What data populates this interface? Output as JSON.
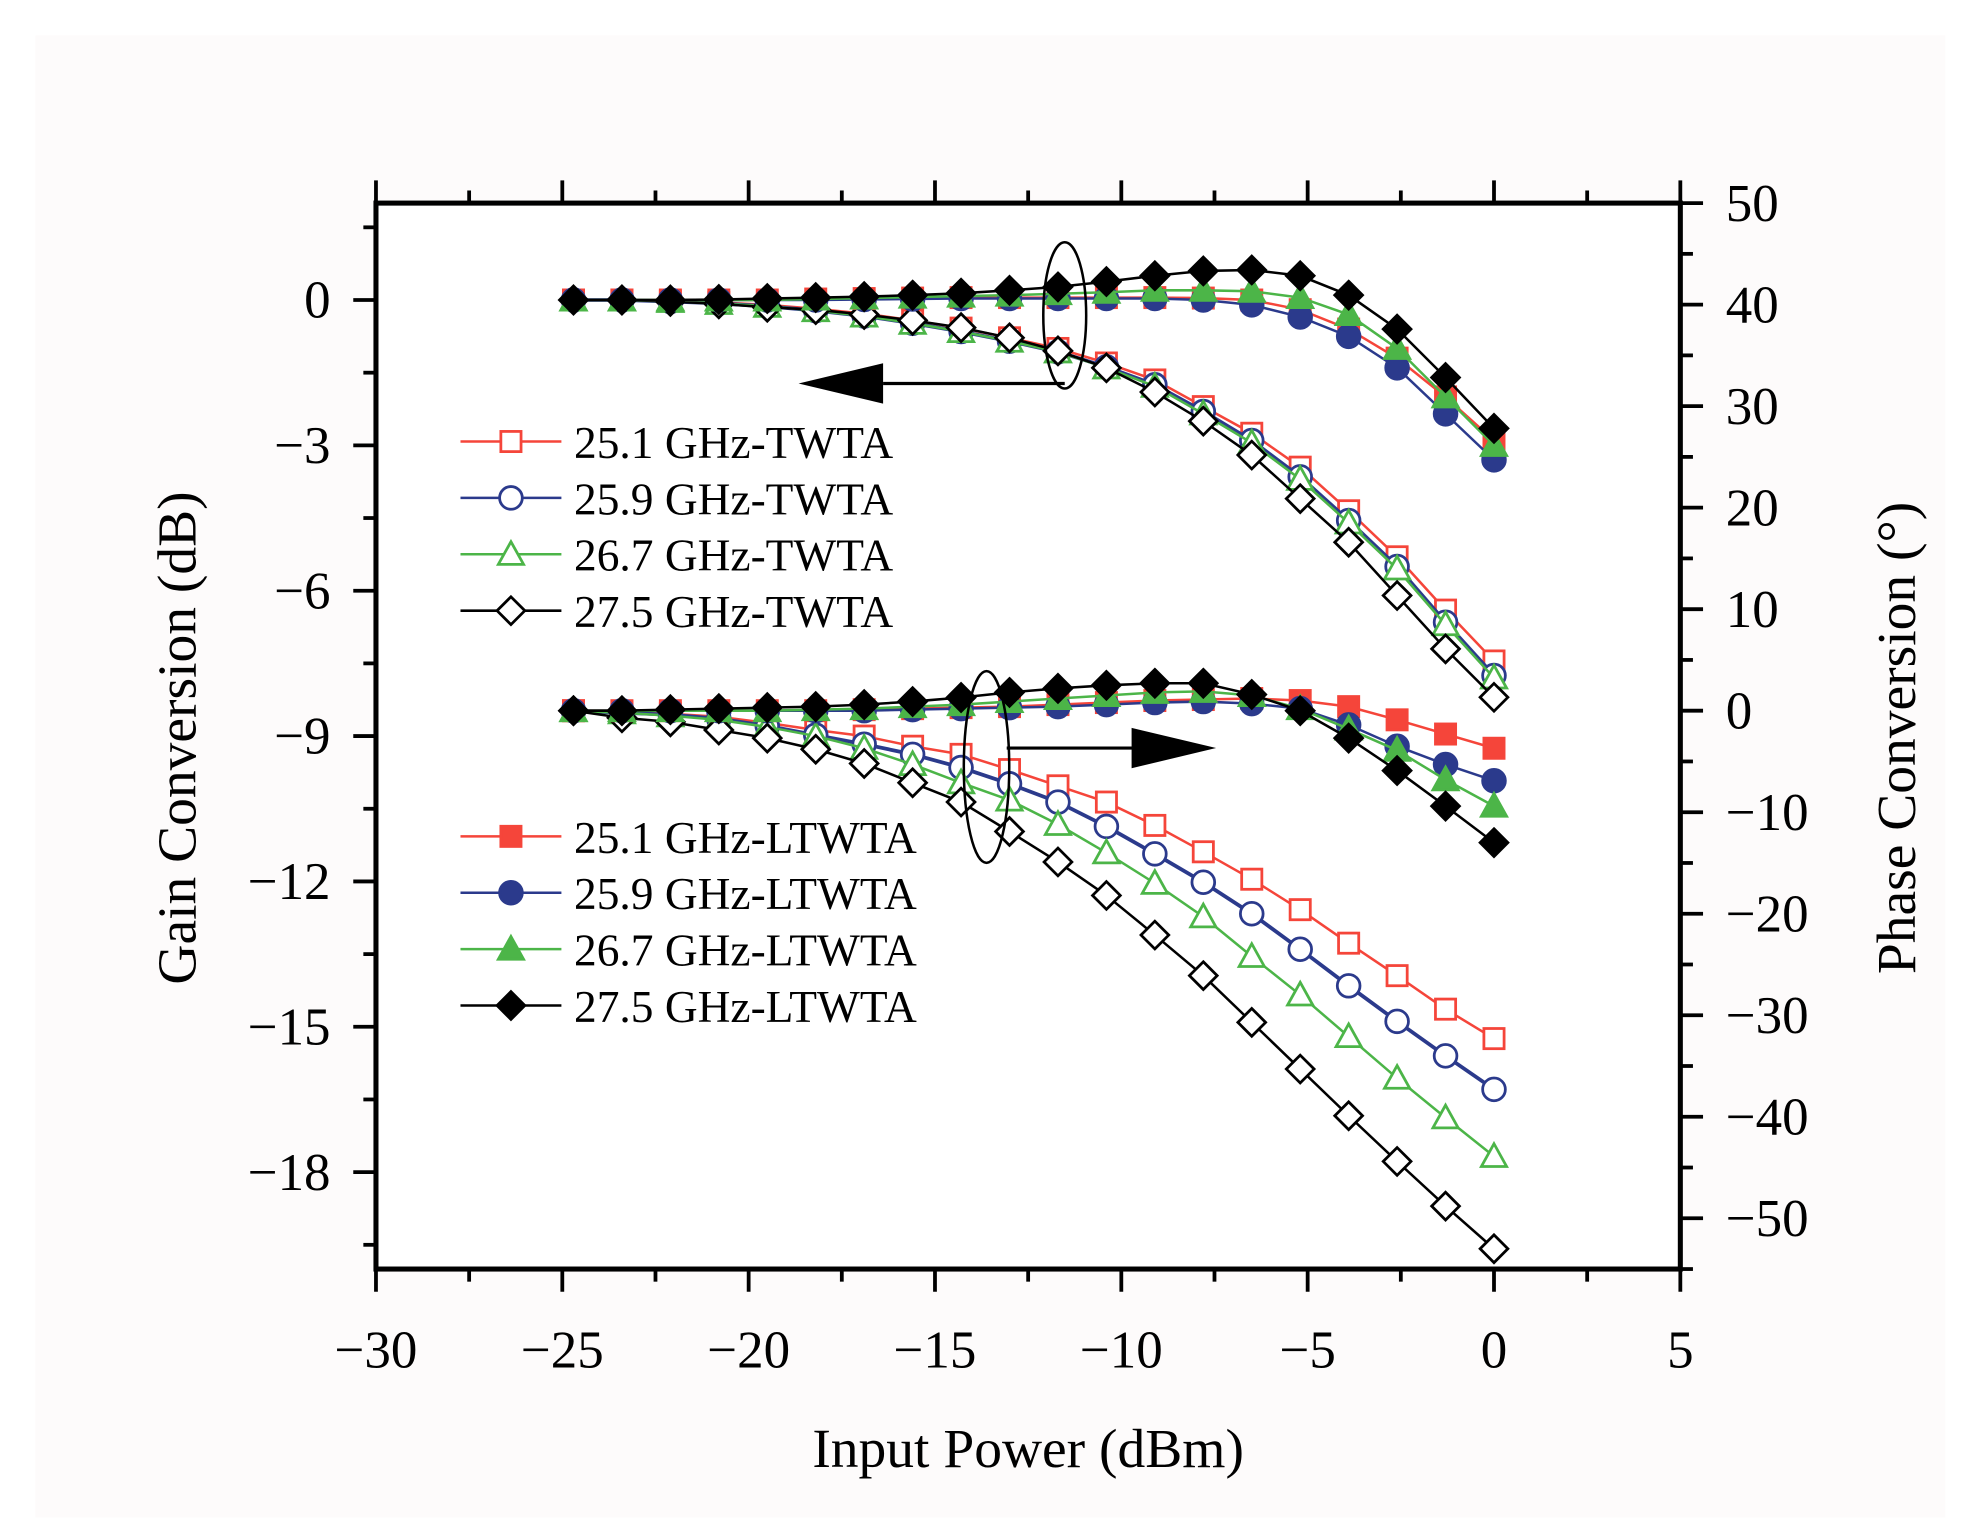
{
  "chart_data": {
    "type": "line",
    "xlabel": "Input Power (dBm)",
    "ylabel": "Gain Conversion (dB)",
    "y2label": "Phase Conversion (°)",
    "xlim": [
      -30,
      5
    ],
    "ylim": [
      -20,
      2
    ],
    "y2lim": [
      -55,
      50
    ],
    "x_ticks": [
      "−30",
      "−25",
      "−20",
      "−15",
      "−10",
      "−5",
      "0",
      "5"
    ],
    "x_tick_values": [
      -30,
      -25,
      -20,
      -15,
      -10,
      -5,
      0,
      5
    ],
    "y_ticks": [
      "0",
      "−3",
      "−6",
      "−9",
      "−12",
      "−15",
      "−18"
    ],
    "y_tick_values": [
      0,
      -3,
      -6,
      -9,
      -12,
      -15,
      -18
    ],
    "y2_ticks": [
      "50",
      "40",
      "30",
      "20",
      "10",
      "0",
      "−10",
      "−20",
      "−30",
      "−40",
      "−50"
    ],
    "y2_tick_values": [
      50,
      40,
      30,
      20,
      10,
      0,
      -10,
      -20,
      -30,
      -40,
      -50
    ],
    "grid": false,
    "x": [
      -24.7,
      -23.4,
      -22.1,
      -20.8,
      -19.5,
      -18.2,
      -16.9,
      -15.6,
      -14.3,
      -13.0,
      -11.7,
      -10.4,
      -9.1,
      -7.8,
      -6.5,
      -5.2,
      -3.9,
      -2.6,
      -1.3,
      0
    ],
    "legend_top": [
      "25.1 GHz-TWTA",
      "25.9 GHz-TWTA",
      "26.7 GHz-TWTA",
      "27.5 GHz-TWTA"
    ],
    "legend_bottom": [
      "25.1 GHz-LTWTA",
      "25.9 GHz-LTWTA",
      "26.7 GHz-LTWTA",
      "27.5 GHz-LTWTA"
    ],
    "series": [
      {
        "name": "25.1 GHz-TWTA gain",
        "axis": "left",
        "marker": "square",
        "filled": false,
        "color": "#f5453a",
        "values": [
          0,
          0,
          -0.02,
          -0.05,
          -0.1,
          -0.18,
          -0.28,
          -0.42,
          -0.58,
          -0.78,
          -1.0,
          -1.3,
          -1.65,
          -2.2,
          -2.75,
          -3.45,
          -4.35,
          -5.3,
          -6.4,
          -7.45
        ]
      },
      {
        "name": "25.9 GHz-TWTA gain",
        "axis": "left",
        "marker": "circle",
        "filled": false,
        "color": "#2b3a8c",
        "values": [
          0,
          0,
          -0.03,
          -0.07,
          -0.13,
          -0.22,
          -0.33,
          -0.48,
          -0.65,
          -0.85,
          -1.07,
          -1.38,
          -1.75,
          -2.3,
          -2.9,
          -3.65,
          -4.55,
          -5.5,
          -6.65,
          -7.75
        ]
      },
      {
        "name": "26.7 GHz-TWTA gain",
        "axis": "left",
        "marker": "triangle",
        "filled": false,
        "color": "#4cb548",
        "values": [
          0,
          0,
          -0.03,
          -0.07,
          -0.13,
          -0.22,
          -0.33,
          -0.48,
          -0.65,
          -0.85,
          -1.07,
          -1.4,
          -1.78,
          -2.35,
          -2.95,
          -3.7,
          -4.6,
          -5.55,
          -6.7,
          -7.8
        ]
      },
      {
        "name": "27.5 GHz-TWTA gain",
        "axis": "left",
        "marker": "diamond",
        "filled": false,
        "color": "#000000",
        "values": [
          0,
          0,
          -0.03,
          -0.08,
          -0.15,
          -0.2,
          -0.3,
          -0.42,
          -0.57,
          -0.78,
          -1.05,
          -1.4,
          -1.9,
          -2.5,
          -3.2,
          -4.1,
          -5.0,
          -6.1,
          -7.2,
          -8.2
        ]
      },
      {
        "name": "25.1 GHz-LTWTA gain",
        "axis": "left",
        "marker": "square",
        "filled": true,
        "color": "#f5453a",
        "values": [
          0,
          0,
          0,
          0,
          0,
          0.02,
          0.03,
          0.04,
          0.05,
          0.05,
          0.05,
          0.05,
          0.05,
          0.04,
          0,
          -0.2,
          -0.6,
          -1.2,
          -2.0,
          -2.9
        ]
      },
      {
        "name": "25.9 GHz-LTWTA gain",
        "axis": "left",
        "marker": "circle",
        "filled": true,
        "color": "#2b3a8c",
        "values": [
          0,
          0,
          0,
          0,
          0,
          0,
          0.01,
          0.02,
          0.03,
          0.03,
          0.03,
          0.03,
          0.03,
          0,
          -0.1,
          -0.35,
          -0.75,
          -1.4,
          -2.35,
          -3.3
        ]
      },
      {
        "name": "26.7 GHz-LTWTA gain",
        "axis": "left",
        "marker": "triangle",
        "filled": true,
        "color": "#4cb548",
        "values": [
          0,
          0,
          0,
          0,
          0,
          0.02,
          0.04,
          0.06,
          0.08,
          0.1,
          0.13,
          0.16,
          0.2,
          0.2,
          0.18,
          0.05,
          -0.3,
          -1.0,
          -2.0,
          -3.0
        ]
      },
      {
        "name": "27.5 GHz-LTWTA gain",
        "axis": "left",
        "marker": "diamond",
        "filled": true,
        "color": "#000000",
        "values": [
          0,
          0,
          0,
          0.01,
          0.03,
          0.05,
          0.07,
          0.1,
          0.14,
          0.2,
          0.27,
          0.38,
          0.5,
          0.6,
          0.62,
          0.5,
          0.1,
          -0.6,
          -1.6,
          -2.65
        ]
      },
      {
        "name": "25.1 GHz-TWTA phase",
        "axis": "right",
        "marker": "square",
        "filled": false,
        "color": "#f5453a",
        "values": [
          0,
          -0.1,
          -0.3,
          -0.6,
          -1.2,
          -1.9,
          -2.5,
          -3.5,
          -4.3,
          -5.8,
          -7.4,
          -9,
          -11.3,
          -13.9,
          -16.6,
          -19.6,
          -22.9,
          -26.1,
          -29.4,
          -32.3
        ]
      },
      {
        "name": "25.9 GHz-TWTA phase",
        "axis": "right",
        "marker": "circle",
        "filled": false,
        "color": "#2b3a8c",
        "values": [
          0,
          -0.2,
          -0.4,
          -0.8,
          -1.5,
          -2.4,
          -3.3,
          -4.3,
          -5.6,
          -7.2,
          -9,
          -11.4,
          -14.1,
          -16.9,
          -20,
          -23.5,
          -27.1,
          -30.6,
          -34,
          -37.3
        ]
      },
      {
        "name": "26.7 GHz-TWTA phase",
        "axis": "right",
        "marker": "triangle",
        "filled": false,
        "color": "#4cb548",
        "values": [
          0,
          -0.2,
          -0.5,
          -0.9,
          -1.6,
          -2.5,
          -3.7,
          -5.3,
          -7.1,
          -8.8,
          -11.2,
          -14,
          -17,
          -20.3,
          -24.2,
          -28,
          -32.1,
          -36.2,
          -40.1,
          -43.9
        ]
      },
      {
        "name": "27.5 GHz-TWTA phase",
        "axis": "right",
        "marker": "diamond",
        "filled": false,
        "color": "#000000",
        "values": [
          0,
          -0.7,
          -1.1,
          -1.9,
          -2.7,
          -3.8,
          -5.2,
          -7.1,
          -9,
          -11.9,
          -14.9,
          -18.2,
          -22.1,
          -26.1,
          -30.7,
          -35.3,
          -39.9,
          -44.4,
          -48.8,
          -53
        ]
      },
      {
        "name": "25.1 GHz-LTWTA phase",
        "axis": "right",
        "marker": "square",
        "filled": true,
        "color": "#f5453a",
        "values": [
          0,
          0,
          0,
          0,
          0,
          0,
          0.1,
          0.2,
          0.3,
          0.4,
          0.6,
          0.8,
          1.0,
          1.1,
          1.2,
          1.0,
          0.4,
          -0.9,
          -2.3,
          -3.7
        ]
      },
      {
        "name": "25.9 GHz-LTWTA phase",
        "axis": "right",
        "marker": "circle",
        "filled": true,
        "color": "#2b3a8c",
        "values": [
          0,
          0,
          0,
          0,
          0,
          0,
          0,
          0.1,
          0.2,
          0.3,
          0.4,
          0.6,
          0.8,
          0.9,
          0.7,
          0.2,
          -1.4,
          -3.5,
          -5.3,
          -6.9
        ]
      },
      {
        "name": "26.7 GHz-LTWTA phase",
        "axis": "right",
        "marker": "triangle",
        "filled": true,
        "color": "#4cb548",
        "values": [
          0,
          0,
          0,
          0,
          0,
          0.1,
          0.2,
          0.4,
          0.6,
          0.9,
          1.2,
          1.5,
          1.8,
          1.9,
          1.5,
          0.2,
          -1.8,
          -3.9,
          -6.8,
          -9.4
        ]
      },
      {
        "name": "27.5 GHz-LTWTA phase",
        "axis": "right",
        "marker": "diamond",
        "filled": true,
        "color": "#000000",
        "values": [
          0,
          0,
          0.1,
          0.2,
          0.3,
          0.4,
          0.6,
          0.9,
          1.3,
          1.8,
          2.2,
          2.5,
          2.7,
          2.7,
          1.6,
          0,
          -2.7,
          -5.9,
          -9.4,
          -13
        ]
      }
    ],
    "annotations": [
      {
        "type": "ellipse-arrow",
        "points_to": "left axis (gain)"
      },
      {
        "type": "ellipse-arrow",
        "points_to": "right axis (phase)"
      }
    ]
  }
}
